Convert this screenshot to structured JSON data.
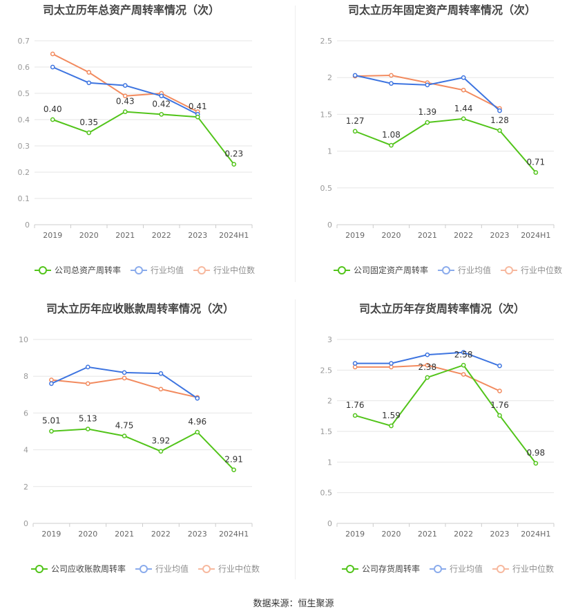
{
  "source_label": "数据来源：恒生聚源",
  "colors": {
    "company": "#52c41a",
    "avg": "#3d74e0",
    "median": "#f28a5e",
    "grid": "#e6e6e6",
    "axis": "#999999",
    "text": "#666666"
  },
  "chart_data": [
    {
      "type": "line",
      "title": "司太立历年总资产周转率情况（次）",
      "categories": [
        "2019",
        "2020",
        "2021",
        "2022",
        "2023",
        "2024H1"
      ],
      "ylim": [
        0,
        0.7
      ],
      "yticks": [
        0,
        0.1,
        0.2,
        0.3,
        0.4,
        0.5,
        0.6,
        0.7
      ],
      "ytick_labels": [
        "0",
        "0.1",
        "0.2",
        "0.3",
        "0.4",
        "0.5",
        "0.6",
        "0.7"
      ],
      "grid": true,
      "legend_position": "bottom",
      "series": [
        {
          "name": "公司总资产周转率",
          "key": "company",
          "values": [
            0.4,
            0.35,
            0.43,
            0.42,
            0.41,
            0.23
          ],
          "labels": [
            "0.40",
            "0.35",
            "0.43",
            "0.42",
            "0.41",
            "0.23"
          ]
        },
        {
          "name": "行业均值",
          "key": "avg",
          "values": [
            0.6,
            0.54,
            0.53,
            0.49,
            0.42,
            null
          ]
        },
        {
          "name": "行业中位数",
          "key": "median",
          "values": [
            0.65,
            0.58,
            0.49,
            0.5,
            0.43,
            null
          ]
        }
      ]
    },
    {
      "type": "line",
      "title": "司太立历年固定资产周转率情况（次）",
      "categories": [
        "2019",
        "2020",
        "2021",
        "2022",
        "2023",
        "2024H1"
      ],
      "ylim": [
        0,
        2.5
      ],
      "yticks": [
        0,
        0.5,
        1,
        1.5,
        2,
        2.5
      ],
      "ytick_labels": [
        "0",
        "0.5",
        "1",
        "1.5",
        "2",
        "2.5"
      ],
      "grid": true,
      "legend_position": "bottom",
      "series": [
        {
          "name": "公司固定资产周转率",
          "key": "company",
          "values": [
            1.27,
            1.08,
            1.39,
            1.44,
            1.28,
            0.71
          ],
          "labels": [
            "1.27",
            "1.08",
            "1.39",
            "1.44",
            "1.28",
            "0.71"
          ]
        },
        {
          "name": "行业均值",
          "key": "avg",
          "values": [
            2.03,
            1.92,
            1.9,
            2.0,
            1.55,
            null
          ]
        },
        {
          "name": "行业中位数",
          "key": "median",
          "values": [
            2.02,
            2.03,
            1.93,
            1.83,
            1.58,
            null
          ]
        }
      ]
    },
    {
      "type": "line",
      "title": "司太立历年应收账款周转率情况（次）",
      "categories": [
        "2019",
        "2020",
        "2021",
        "2022",
        "2023",
        "2024H1"
      ],
      "ylim": [
        0,
        10
      ],
      "yticks": [
        0,
        2,
        4,
        6,
        8,
        10
      ],
      "ytick_labels": [
        "0",
        "2",
        "4",
        "6",
        "8",
        "10"
      ],
      "grid": true,
      "legend_position": "bottom",
      "series": [
        {
          "name": "公司应收账款周转率",
          "key": "company",
          "values": [
            5.01,
            5.13,
            4.75,
            3.92,
            4.96,
            2.91
          ],
          "labels": [
            "5.01",
            "5.13",
            "4.75",
            "3.92",
            "4.96",
            "2.91"
          ]
        },
        {
          "name": "行业均值",
          "key": "avg",
          "values": [
            7.6,
            8.5,
            8.2,
            8.15,
            6.8,
            null
          ]
        },
        {
          "name": "行业中位数",
          "key": "median",
          "values": [
            7.8,
            7.6,
            7.9,
            7.3,
            6.85,
            null
          ]
        }
      ]
    },
    {
      "type": "line",
      "title": "司太立历年存货周转率情况（次）",
      "categories": [
        "2019",
        "2020",
        "2021",
        "2022",
        "2023",
        "2024H1"
      ],
      "ylim": [
        0,
        3
      ],
      "yticks": [
        0,
        0.5,
        1,
        1.5,
        2,
        2.5,
        3
      ],
      "ytick_labels": [
        "0",
        "0.5",
        "1",
        "1.5",
        "2",
        "2.5",
        "3"
      ],
      "grid": true,
      "legend_position": "bottom",
      "series": [
        {
          "name": "公司存货周转率",
          "key": "company",
          "values": [
            1.76,
            1.59,
            2.38,
            2.58,
            1.76,
            0.98
          ],
          "labels": [
            "1.76",
            "1.59",
            "2.38",
            "2.58",
            "1.76",
            "0.98"
          ]
        },
        {
          "name": "行业均值",
          "key": "avg",
          "values": [
            2.61,
            2.61,
            2.75,
            2.79,
            2.57,
            null
          ]
        },
        {
          "name": "行业中位数",
          "key": "median",
          "values": [
            2.55,
            2.55,
            2.58,
            2.43,
            2.16,
            null
          ]
        }
      ]
    }
  ]
}
